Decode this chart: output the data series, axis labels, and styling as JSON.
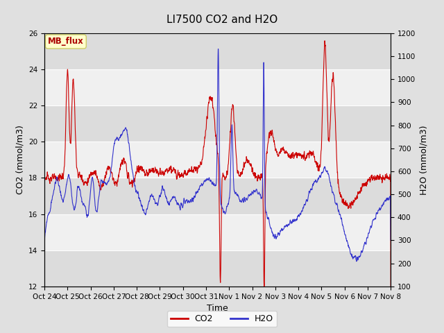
{
  "title": "LI7500 CO2 and H2O",
  "xlabel": "Time",
  "ylabel_left": "CO2 (mmol/m3)",
  "ylabel_right": "H2O (mmol/m3)",
  "ylim_left": [
    12,
    26
  ],
  "ylim_right": [
    100,
    1200
  ],
  "yticks_left": [
    12,
    14,
    16,
    18,
    20,
    22,
    24,
    26
  ],
  "yticks_right": [
    100,
    200,
    300,
    400,
    500,
    600,
    700,
    800,
    900,
    1000,
    1100,
    1200
  ],
  "x_tick_labels": [
    "Oct 24",
    "Oct 25",
    "Oct 26",
    "Oct 27",
    "Oct 28",
    "Oct 29",
    "Oct 30",
    "Oct 31",
    "Nov 1",
    "Nov 2",
    "Nov 3",
    "Nov 4",
    "Nov 5",
    "Nov 6",
    "Nov 7",
    "Nov 8"
  ],
  "co2_color": "#cc0000",
  "h2o_color": "#3333cc",
  "line_width": 0.8,
  "bg_color": "#e0e0e0",
  "plot_bg_light": "#f0f0f0",
  "plot_bg_dark": "#dcdcdc",
  "grid_color": "#ffffff",
  "annotation_text": "MB_flux",
  "annotation_color": "#aa0000",
  "annotation_bg": "#ffffcc",
  "annotation_edge": "#cccc66",
  "title_fontsize": 11,
  "axis_fontsize": 9,
  "tick_fontsize": 7.5
}
